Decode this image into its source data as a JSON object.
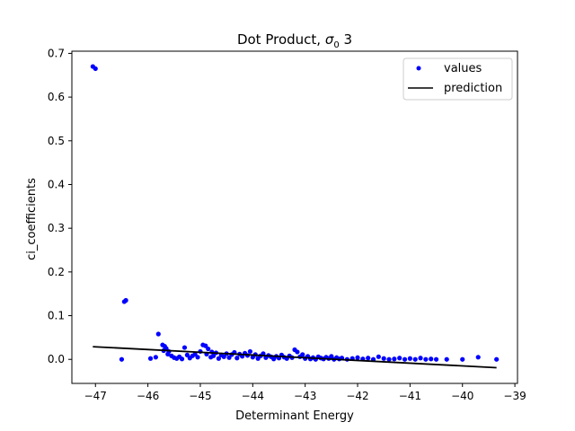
{
  "chart_data": {
    "type": "scatter",
    "title": "Dot Product, σ0 3",
    "title_parts": {
      "prefix": "Dot Product, ",
      "symbol": "σ",
      "subscript": "0",
      "suffix": " 3"
    },
    "xlabel": "Determinant Energy",
    "ylabel": "ci_coefficients",
    "xlim": [
      -47.45,
      -38.95
    ],
    "ylim": [
      -0.055,
      0.705
    ],
    "x_ticks": [
      -47,
      -46,
      -45,
      -44,
      -43,
      -42,
      -41,
      -40,
      -39
    ],
    "x_tick_labels": [
      "−47",
      "−46",
      "−45",
      "−44",
      "−43",
      "−42",
      "−41",
      "−40",
      "−39"
    ],
    "y_ticks": [
      0.0,
      0.1,
      0.2,
      0.3,
      0.4,
      0.5,
      0.6,
      0.7
    ],
    "y_tick_labels": [
      "0.0",
      "0.1",
      "0.2",
      "0.3",
      "0.4",
      "0.5",
      "0.6",
      "0.7"
    ],
    "legend_position": "top-right",
    "colors": {
      "values": "#0000ff",
      "prediction": "#000000"
    },
    "series": [
      {
        "name": "values",
        "label": "values",
        "style": "points",
        "points": [
          [
            -47.05,
            0.67
          ],
          [
            -47.0,
            0.665
          ],
          [
            -46.45,
            0.132
          ],
          [
            -46.42,
            0.135
          ],
          [
            -46.5,
            0.0
          ],
          [
            -45.95,
            0.002
          ],
          [
            -45.85,
            0.005
          ],
          [
            -45.8,
            0.058
          ],
          [
            -45.72,
            0.033
          ],
          [
            -45.68,
            0.03
          ],
          [
            -45.7,
            0.02
          ],
          [
            -45.65,
            0.025
          ],
          [
            -45.62,
            0.012
          ],
          [
            -45.6,
            0.018
          ],
          [
            -45.55,
            0.008
          ],
          [
            -45.5,
            0.004
          ],
          [
            -45.45,
            0.002
          ],
          [
            -45.4,
            0.006
          ],
          [
            -45.35,
            0.001
          ],
          [
            -45.3,
            0.027
          ],
          [
            -45.25,
            0.01
          ],
          [
            -45.2,
            0.003
          ],
          [
            -45.15,
            0.008
          ],
          [
            -45.1,
            0.012
          ],
          [
            -45.05,
            0.005
          ],
          [
            -45.0,
            0.018
          ],
          [
            -44.95,
            0.033
          ],
          [
            -44.9,
            0.031
          ],
          [
            -44.88,
            0.012
          ],
          [
            -44.85,
            0.024
          ],
          [
            -44.8,
            0.005
          ],
          [
            -44.78,
            0.017
          ],
          [
            -44.75,
            0.008
          ],
          [
            -44.7,
            0.015
          ],
          [
            -44.65,
            0.002
          ],
          [
            -44.6,
            0.01
          ],
          [
            -44.55,
            0.006
          ],
          [
            -44.5,
            0.013
          ],
          [
            -44.45,
            0.004
          ],
          [
            -44.4,
            0.011
          ],
          [
            -44.35,
            0.016
          ],
          [
            -44.3,
            0.003
          ],
          [
            -44.25,
            0.012
          ],
          [
            -44.2,
            0.007
          ],
          [
            -44.15,
            0.014
          ],
          [
            -44.1,
            0.009
          ],
          [
            -44.05,
            0.018
          ],
          [
            -44.0,
            0.005
          ],
          [
            -43.95,
            0.011
          ],
          [
            -43.9,
            0.002
          ],
          [
            -43.85,
            0.008
          ],
          [
            -43.8,
            0.013
          ],
          [
            -43.75,
            0.004
          ],
          [
            -43.7,
            0.009
          ],
          [
            -43.65,
            0.006
          ],
          [
            -43.6,
            0.001
          ],
          [
            -43.55,
            0.007
          ],
          [
            -43.5,
            0.003
          ],
          [
            -43.45,
            0.01
          ],
          [
            -43.4,
            0.005
          ],
          [
            -43.35,
            0.002
          ],
          [
            -43.3,
            0.008
          ],
          [
            -43.25,
            0.004
          ],
          [
            -43.2,
            0.022
          ],
          [
            -43.15,
            0.017
          ],
          [
            -43.1,
            0.006
          ],
          [
            -43.05,
            0.011
          ],
          [
            -43.0,
            0.002
          ],
          [
            -42.95,
            0.007
          ],
          [
            -42.9,
            0.001
          ],
          [
            -42.85,
            0.004
          ],
          [
            -42.8,
            0.0
          ],
          [
            -42.75,
            0.006
          ],
          [
            -42.7,
            0.003
          ],
          [
            -42.65,
            0.001
          ],
          [
            -42.6,
            0.005
          ],
          [
            -42.55,
            0.002
          ],
          [
            -42.5,
            0.007
          ],
          [
            -42.45,
            0.0
          ],
          [
            -42.4,
            0.004
          ],
          [
            -42.35,
            0.001
          ],
          [
            -42.3,
            0.003
          ],
          [
            -42.2,
            0.0
          ],
          [
            -42.1,
            0.002
          ],
          [
            -42.0,
            0.004
          ],
          [
            -41.9,
            0.001
          ],
          [
            -41.8,
            0.003
          ],
          [
            -41.7,
            0.0
          ],
          [
            -41.6,
            0.006
          ],
          [
            -41.5,
            0.002
          ],
          [
            -41.4,
            0.0
          ],
          [
            -41.3,
            0.001
          ],
          [
            -41.2,
            0.003
          ],
          [
            -41.1,
            0.0
          ],
          [
            -41.0,
            0.002
          ],
          [
            -40.9,
            0.0
          ],
          [
            -40.8,
            0.003
          ],
          [
            -40.7,
            0.0
          ],
          [
            -40.6,
            0.001
          ],
          [
            -40.5,
            0.0
          ],
          [
            -40.3,
            0.0
          ],
          [
            -40.0,
            0.0
          ],
          [
            -39.7,
            0.005
          ],
          [
            -39.35,
            0.0
          ]
        ]
      },
      {
        "name": "prediction",
        "label": "prediction",
        "style": "line",
        "x": [
          -47.05,
          -39.35
        ],
        "y": [
          0.029,
          -0.019
        ]
      }
    ]
  }
}
